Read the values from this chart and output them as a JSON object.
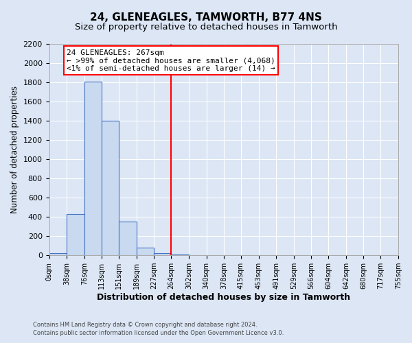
{
  "title": "24, GLENEAGLES, TAMWORTH, B77 4NS",
  "subtitle": "Size of property relative to detached houses in Tamworth",
  "xlabel": "Distribution of detached houses by size in Tamworth",
  "ylabel": "Number of detached properties",
  "bin_edges": [
    0,
    38,
    76,
    113,
    151,
    189,
    227,
    264,
    302,
    340,
    378,
    415,
    453,
    491,
    529,
    566,
    604,
    642,
    680,
    717,
    755
  ],
  "bar_heights": [
    20,
    430,
    1810,
    1400,
    350,
    80,
    25,
    10,
    0,
    0,
    0,
    0,
    0,
    0,
    0,
    0,
    0,
    0,
    0,
    0
  ],
  "bar_color": "#c9daf0",
  "bar_edge_color": "#4472c4",
  "vline_x": 264,
  "vline_color": "red",
  "annotation_title": "24 GLENEAGLES: 267sqm",
  "annotation_line1": "← >99% of detached houses are smaller (4,068)",
  "annotation_line2": "<1% of semi-detached houses are larger (14) →",
  "annotation_box_color": "white",
  "annotation_box_edge_color": "red",
  "ylim": [
    0,
    2200
  ],
  "yticks": [
    0,
    200,
    400,
    600,
    800,
    1000,
    1200,
    1400,
    1600,
    1800,
    2000,
    2200
  ],
  "xtick_labels": [
    "0sqm",
    "38sqm",
    "76sqm",
    "113sqm",
    "151sqm",
    "189sqm",
    "227sqm",
    "264sqm",
    "302sqm",
    "340sqm",
    "378sqm",
    "415sqm",
    "453sqm",
    "491sqm",
    "529sqm",
    "566sqm",
    "604sqm",
    "642sqm",
    "680sqm",
    "717sqm",
    "755sqm"
  ],
  "footer_line1": "Contains HM Land Registry data © Crown copyright and database right 2024.",
  "footer_line2": "Contains public sector information licensed under the Open Government Licence v3.0.",
  "background_color": "#dce6f5",
  "plot_bg_color": "#dce6f5",
  "grid_color": "white",
  "title_fontsize": 11,
  "subtitle_fontsize": 9.5
}
